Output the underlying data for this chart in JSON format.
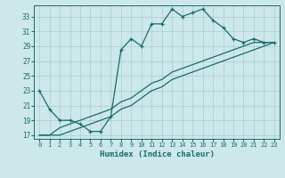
{
  "xlabel": "Humidex (Indice chaleur)",
  "background_color": "#cce8ea",
  "grid_color": "#aacccc",
  "line_color": "#1a6b6b",
  "xlim": [
    -0.5,
    23.5
  ],
  "ylim": [
    16.5,
    34.5
  ],
  "xticks": [
    0,
    1,
    2,
    3,
    4,
    5,
    6,
    7,
    8,
    9,
    10,
    11,
    12,
    13,
    14,
    15,
    16,
    17,
    18,
    19,
    20,
    21,
    22,
    23
  ],
  "yticks": [
    17,
    19,
    21,
    23,
    25,
    27,
    29,
    31,
    33
  ],
  "series": {
    "line1_x": [
      0,
      1,
      2,
      3,
      4,
      5,
      6,
      7,
      8,
      9,
      10,
      11,
      12,
      13,
      14,
      15,
      16,
      17,
      18,
      19,
      20,
      21,
      22,
      23
    ],
    "line1_y": [
      23,
      20.5,
      19,
      19,
      18.5,
      17.5,
      17.5,
      19.5,
      28.5,
      30,
      29,
      32,
      32,
      34,
      33,
      33.5,
      34,
      32.5,
      31.5,
      30,
      29.5,
      30,
      29.5,
      29.5
    ],
    "line2_x": [
      0,
      1,
      2,
      3,
      4,
      5,
      6,
      7,
      8,
      9,
      10,
      11,
      12,
      13,
      14,
      15,
      16,
      17,
      18,
      19,
      20,
      21,
      22,
      23
    ],
    "line2_y": [
      17,
      17,
      18,
      18.5,
      19,
      19.5,
      20,
      20.5,
      21.5,
      22,
      23,
      24,
      24.5,
      25.5,
      26,
      26.5,
      27,
      27.5,
      28,
      28.5,
      29,
      29.5,
      29.5,
      29.5
    ],
    "line3_x": [
      0,
      1,
      2,
      3,
      4,
      5,
      6,
      7,
      8,
      9,
      10,
      11,
      12,
      13,
      14,
      15,
      16,
      17,
      18,
      19,
      20,
      21,
      22,
      23
    ],
    "line3_y": [
      17,
      17,
      17,
      17.5,
      18,
      18.5,
      19,
      19.5,
      20.5,
      21,
      22,
      23,
      23.5,
      24.5,
      25,
      25.5,
      26,
      26.5,
      27,
      27.5,
      28,
      28.5,
      29,
      29.5
    ]
  },
  "figsize": [
    3.2,
    2.0
  ],
  "dpi": 100,
  "xlabel_fontsize": 6.5,
  "tick_fontsize": 5.0,
  "linewidth": 0.9,
  "marker": "+",
  "markersize": 3.5,
  "markeredgewidth": 0.9
}
